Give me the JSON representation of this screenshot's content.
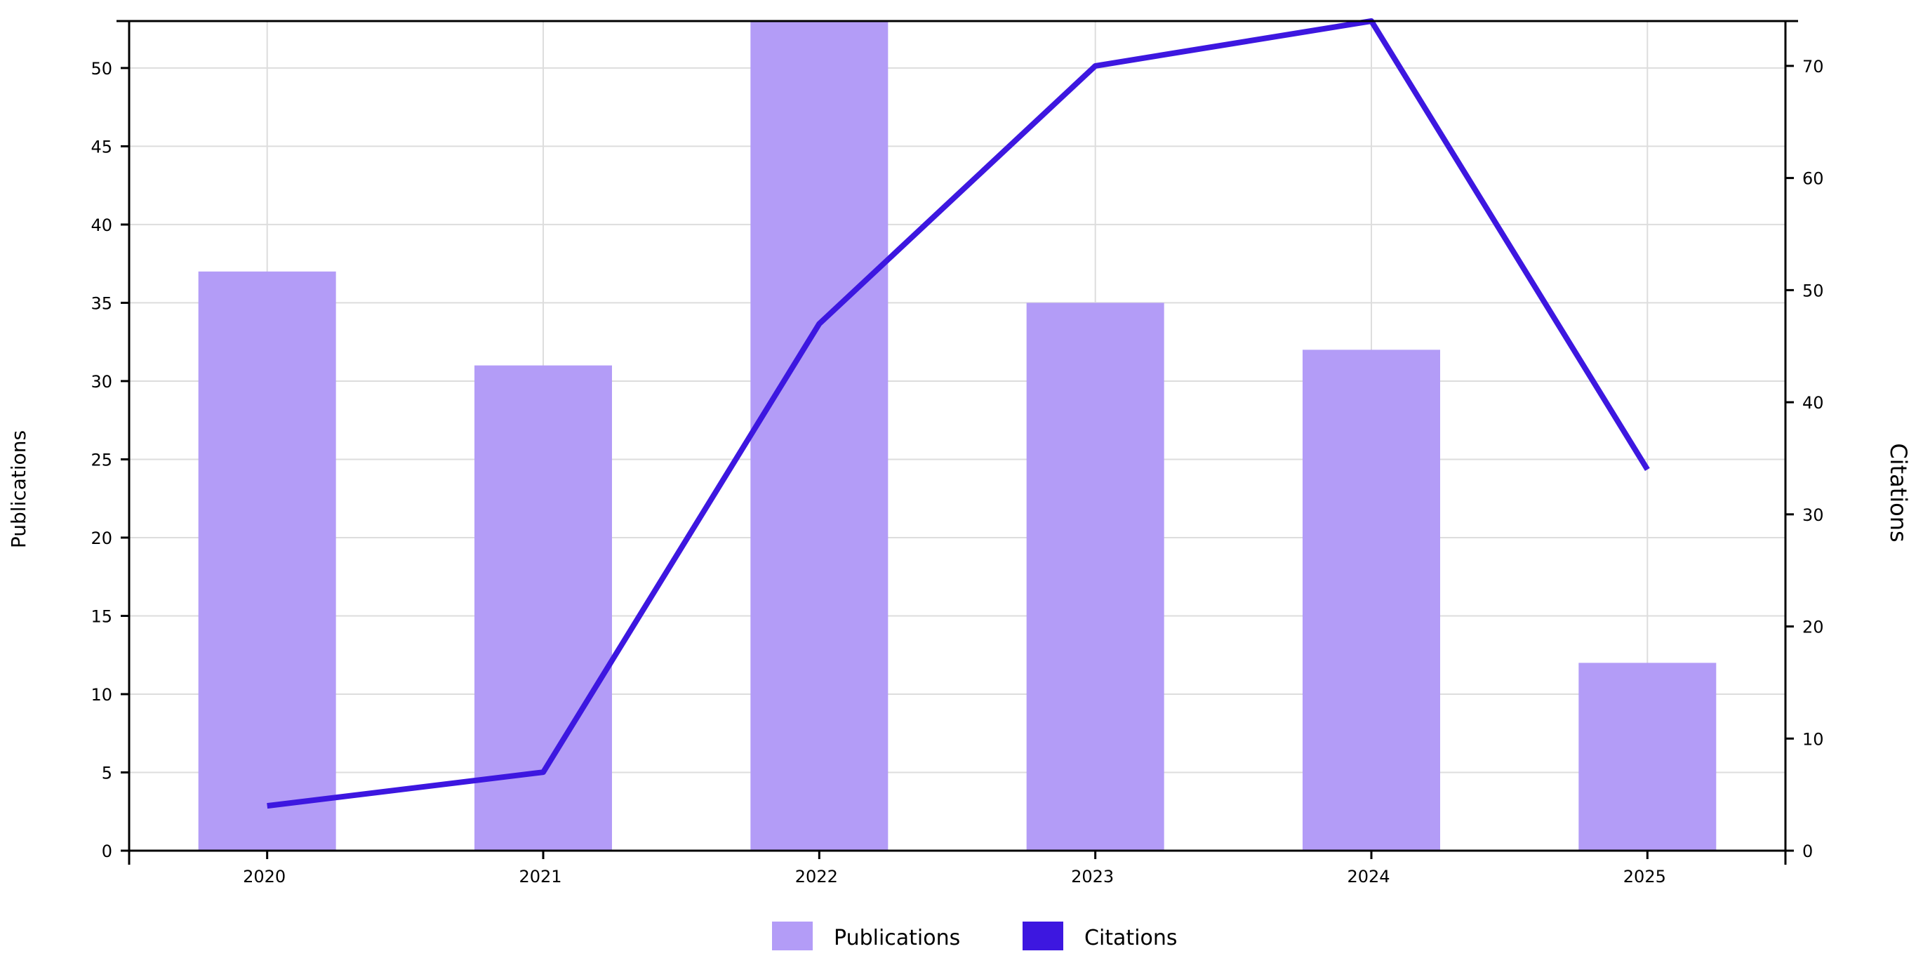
{
  "chart_data": {
    "type": "bar",
    "title": "",
    "xlabel": "",
    "categories": [
      "2020",
      "2021",
      "2022",
      "2023",
      "2024",
      "2025"
    ],
    "series": [
      {
        "name": "Publications",
        "type": "bar",
        "axis": "left",
        "color": "#b39cf7",
        "values": [
          37,
          31,
          53,
          35,
          32,
          12
        ]
      },
      {
        "name": "Citations",
        "type": "line",
        "axis": "right",
        "color": "#3d17e0",
        "values": [
          4,
          7,
          47,
          70,
          74,
          34
        ]
      }
    ],
    "y_left": {
      "label": "Publications",
      "lim": [
        0,
        53
      ],
      "ticks": [
        0,
        5,
        10,
        15,
        20,
        25,
        30,
        35,
        40,
        45,
        50
      ]
    },
    "y_right": {
      "label": "Citations",
      "lim": [
        0,
        74
      ],
      "ticks": [
        0,
        10,
        20,
        30,
        40,
        50,
        60,
        70
      ]
    },
    "grid": true,
    "legend": {
      "position": "bottom-center",
      "items": [
        "Publications",
        "Citations"
      ]
    }
  }
}
